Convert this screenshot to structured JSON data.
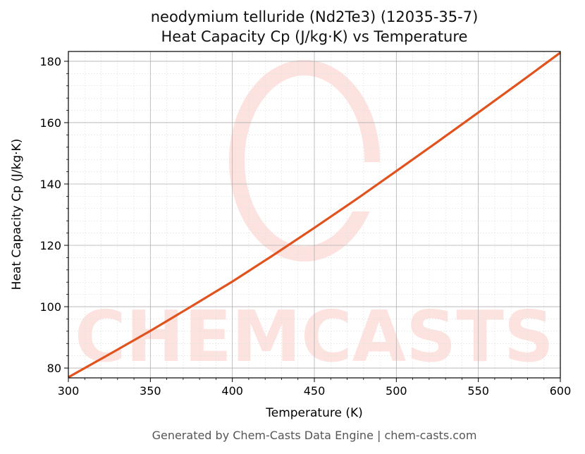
{
  "chart_data": {
    "type": "line",
    "title": "neodymium telluride (Nd2Te3) (12035-35-7)",
    "subtitle": "Heat Capacity Cp (J/kg·K) vs Temperature",
    "xlabel": "Temperature (K)",
    "ylabel": "Heat Capacity Cp (J/kg·K)",
    "xlim": [
      300,
      600
    ],
    "ylim": [
      76.8,
      183.2
    ],
    "x_ticks": [
      300,
      350,
      400,
      450,
      500,
      550,
      600
    ],
    "y_ticks": [
      80,
      100,
      120,
      140,
      160,
      180
    ],
    "grid": true,
    "minor_grid": true,
    "legend": null,
    "series": [
      {
        "name": "Heat Capacity Cp",
        "color": "#e0531f",
        "x": [
          300,
          325,
          350,
          375,
          400,
          425,
          450,
          475,
          500,
          525,
          550,
          575,
          600
        ],
        "values": [
          77.0,
          84.5,
          92.1,
          100.1,
          108.2,
          116.8,
          125.7,
          134.8,
          144.2,
          153.7,
          163.3,
          173.0,
          182.8
        ]
      }
    ],
    "watermark": "CHEMCASTS"
  },
  "header": {
    "title_line1": "neodymium telluride (Nd2Te3) (12035-35-7)",
    "title_line2": "Heat Capacity Cp (J/kg·K) vs Temperature"
  },
  "axes": {
    "xlabel": "Temperature (K)",
    "ylabel": "Heat Capacity Cp (J/kg·K)"
  },
  "footer": {
    "text": "Generated by Chem-Casts Data Engine | chem-casts.com"
  },
  "colors": {
    "line": "#e0531f",
    "watermark": "#fde3df",
    "grid_major": "#b0b0b0",
    "grid_minor": "#e2e2e2"
  }
}
